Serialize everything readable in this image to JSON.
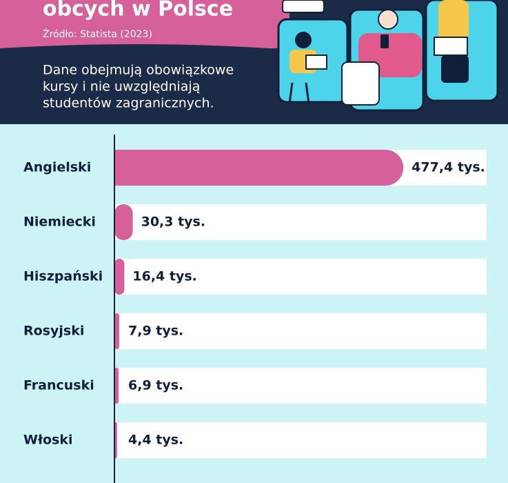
{
  "chart_data": {
    "type": "bar",
    "orientation": "horizontal",
    "title": "obcych w Polsce",
    "subtitle": "Źródło: Statista (2023)",
    "note": [
      "Dane obejmują obowiązkowe",
      "kursy i nie uwzględniają",
      "studentów zagranicznych."
    ],
    "categories": [
      "Angielski",
      "Niemiecki",
      "Hiszpański",
      "Rosyjski",
      "Francuski",
      "Włoski"
    ],
    "values": [
      477.4,
      30.3,
      16.4,
      7.9,
      6.9,
      4.4
    ],
    "value_labels": [
      "477,4 tys.",
      "30,3 tys.",
      "16,4 tys.",
      "7,9 tys.",
      "6,9 tys.",
      "4,4 tys."
    ],
    "color": "#d6609a",
    "xlim": [
      0,
      615
    ]
  }
}
